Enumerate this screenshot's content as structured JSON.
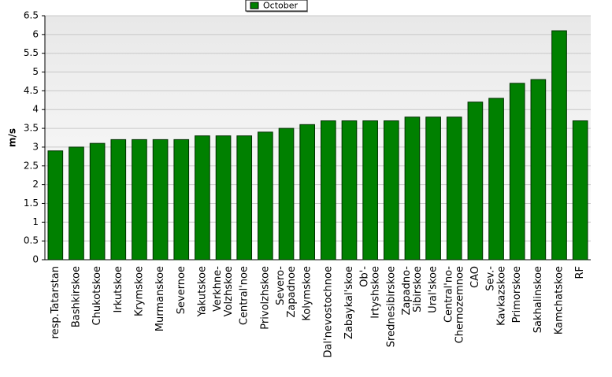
{
  "chart_data": {
    "type": "bar",
    "y_label": "m/s",
    "categories": [
      [
        "resp.Tatarstan"
      ],
      [
        "Bashkirskoe"
      ],
      [
        "Chukotskoe"
      ],
      [
        "Irkutskoe"
      ],
      [
        "Krymskoe"
      ],
      [
        "Murmanskoe"
      ],
      [
        "Severnoe"
      ],
      [
        "Yakutskoe"
      ],
      [
        "Verkhne-",
        "Volzhskoe"
      ],
      [
        "Central'noe"
      ],
      [
        "Privolzhskoe"
      ],
      [
        "Severo-",
        "Zapadnoe"
      ],
      [
        "Kolymskoe"
      ],
      [
        "Dal'nevostochnoe"
      ],
      [
        "Zabaykal'skoe"
      ],
      [
        "Ob'-",
        "Irtyshskoe"
      ],
      [
        "Srednesibirskoe"
      ],
      [
        "Zapadno-",
        "Sibirskoe"
      ],
      [
        "Ural'skoe"
      ],
      [
        "Central'no-",
        "Chernozemnoe"
      ],
      [
        "CAO"
      ],
      [
        "Sev.-",
        "Kavkazskoe"
      ],
      [
        "Primorskoe"
      ],
      [
        "Sakhalinskoe"
      ],
      [
        "Kamchatskoe"
      ],
      [
        "RF"
      ]
    ],
    "series": [
      {
        "name": "October",
        "color": "#008000",
        "values": [
          2.9,
          3.0,
          3.1,
          3.2,
          3.2,
          3.2,
          3.2,
          3.3,
          3.3,
          3.3,
          3.4,
          3.5,
          3.6,
          3.7,
          3.7,
          3.7,
          3.7,
          3.8,
          3.8,
          3.8,
          4.2,
          4.3,
          4.7,
          4.8,
          6.1,
          3.7
        ]
      }
    ],
    "ylim": [
      0,
      6.5
    ],
    "yticks": [
      0,
      0.5,
      1,
      1.5,
      2,
      2.5,
      3,
      3.5,
      4,
      4.5,
      5,
      5.5,
      6,
      6.5
    ],
    "grid": true
  }
}
